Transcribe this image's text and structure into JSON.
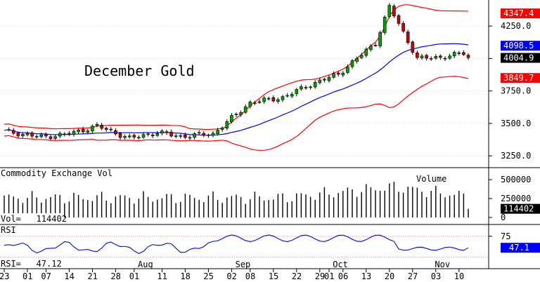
{
  "chart_data": {
    "type": "candlestick",
    "title": "December Gold",
    "x_ticks": [
      {
        "label": "23",
        "i": 0
      },
      {
        "label": "01",
        "i": 5
      },
      {
        "label": "07",
        "i": 9
      },
      {
        "label": "14",
        "i": 14
      },
      {
        "label": "21",
        "i": 19
      },
      {
        "label": "28",
        "i": 24
      },
      {
        "label": "01",
        "i": 28
      },
      {
        "label": "11",
        "i": 34
      },
      {
        "label": "18",
        "i": 39
      },
      {
        "label": "25",
        "i": 44
      },
      {
        "label": "02",
        "i": 49
      },
      {
        "label": "08",
        "i": 53
      },
      {
        "label": "15",
        "i": 58
      },
      {
        "label": "22",
        "i": 63
      },
      {
        "label": "29",
        "i": 68
      },
      {
        "label": "01",
        "i": 70
      },
      {
        "label": "06",
        "i": 73
      },
      {
        "label": "13",
        "i": 78
      },
      {
        "label": "20",
        "i": 83
      },
      {
        "label": "27",
        "i": 88
      },
      {
        "label": "03",
        "i": 93
      },
      {
        "label": "10",
        "i": 98
      }
    ],
    "month_labels": [
      {
        "label": "Aug",
        "i": 30
      },
      {
        "label": "Sep",
        "i": 51
      },
      {
        "label": "Oct",
        "i": 72
      },
      {
        "label": "Nov",
        "i": 94
      }
    ],
    "price_panel": {
      "y_ticks": [
        3250,
        3500,
        3750,
        4000,
        4250
      ],
      "y_tick_labels": [
        "3250.0",
        "3500.0",
        "3750.0",
        "4000.0",
        "4250.0"
      ],
      "ylim": [
        3170,
        4440
      ],
      "upper_band_label": "4347.4",
      "middle_band_label": "4098.5",
      "last_price_label": "4004.9",
      "lower_band_label": "3849.7",
      "upper_band_color": "#ff0000",
      "middle_band_color": "#0000ff",
      "lower_band_color": "#ff0000",
      "up_candle_color": "#00a000",
      "down_candle_color": "#cc0000"
    },
    "volume_panel": {
      "title": "Commodity Exchange Vol",
      "legend": "Volume",
      "y_ticks": [
        0,
        250000,
        500000
      ],
      "y_tick_labels": [
        "0",
        "250000",
        "500000"
      ],
      "ylim": [
        0,
        640000
      ],
      "last_label": "114402",
      "readout": "Vol=   114402",
      "bar_color": "#000000"
    },
    "rsi_panel": {
      "title": "RSI",
      "y_ticks": [
        75
      ],
      "y_tick_labels": [
        "75"
      ],
      "ylim": [
        0,
        100
      ],
      "last_label": "47.1",
      "readout": "RSI=   47.12",
      "line_color": "#0000ff"
    }
  }
}
